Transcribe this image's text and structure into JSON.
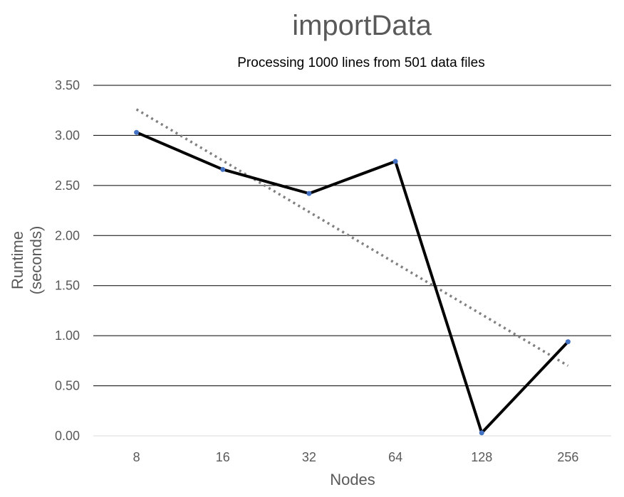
{
  "chart_data": {
    "type": "line",
    "title": "importData",
    "subtitle": "Processing 1000 lines from 501 data files",
    "xlabel": "Nodes",
    "ylabel_line1": "Runtime",
    "ylabel_line2": "(seconds)",
    "categories": [
      "8",
      "16",
      "32",
      "64",
      "128",
      "256"
    ],
    "series": [
      {
        "values": [
          3.03,
          2.66,
          2.42,
          2.74,
          0.03,
          0.94
        ]
      }
    ],
    "trendline": {
      "style": "dotted",
      "start": 3.26,
      "end": 0.7
    },
    "ylim": [
      0,
      3.5
    ],
    "yticks": [
      "0.00",
      "0.50",
      "1.00",
      "1.50",
      "2.00",
      "2.50",
      "3.00",
      "3.50"
    ],
    "grid": true,
    "legend": "none",
    "colors": {
      "line": "#000000",
      "marker": "#4472c4",
      "trend": "#808080",
      "grid": "#000000",
      "text": "#595959"
    }
  }
}
